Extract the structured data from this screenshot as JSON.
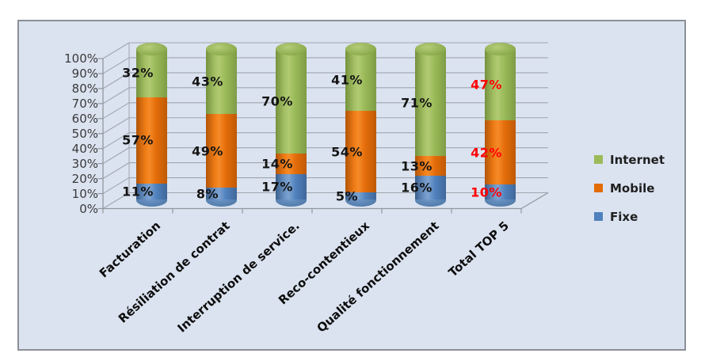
{
  "chart": {
    "plot_background": "#dbe3f0",
    "frame_border_color": "#8b9097",
    "gridline_color": "#a0a6af"
  },
  "chart_data": {
    "type": "bar",
    "subtype": "3d-cylinder-100%-stacked",
    "stacked": true,
    "unit": "%",
    "title": "",
    "categories": [
      "Facturation",
      "Résiliation de contrat",
      "Interruption de service.",
      "Reco-contentieux",
      "Qualité fonctionnement",
      "Total TOP 5"
    ],
    "series": [
      {
        "name": "Internet",
        "color": "#9bbb59",
        "values": [
          32,
          43,
          70,
          41,
          71,
          47
        ],
        "labels": [
          "32%",
          "43%",
          "70%",
          "41%",
          "71%",
          "47%"
        ]
      },
      {
        "name": "Mobile",
        "color": "#e36c09",
        "values": [
          57,
          49,
          14,
          54,
          13,
          42
        ],
        "labels": [
          "57%",
          "49%",
          "14%",
          "54%",
          "13%",
          "42%"
        ]
      },
      {
        "name": "Fixe",
        "color": "#4f81bd",
        "values": [
          11,
          8,
          17,
          5,
          16,
          10
        ],
        "labels": [
          "11%",
          "8%",
          "17%",
          "5%",
          "16%",
          "10%"
        ]
      }
    ],
    "data_label_color": "#141414",
    "highlight_category": "Total TOP 5",
    "highlight_label_color": "#fe0000",
    "y_axis": {
      "min": 0,
      "max": 100,
      "step": 10,
      "tick_labels": [
        "0%",
        "10%",
        "20%",
        "30%",
        "40%",
        "50%",
        "60%",
        "70%",
        "80%",
        "90%",
        "100%"
      ]
    },
    "x_axis": {
      "label_rotation_deg": -42
    },
    "grid": true,
    "legend": {
      "position": "right",
      "entries": [
        "Internet",
        "Mobile",
        "Fixe"
      ]
    }
  }
}
